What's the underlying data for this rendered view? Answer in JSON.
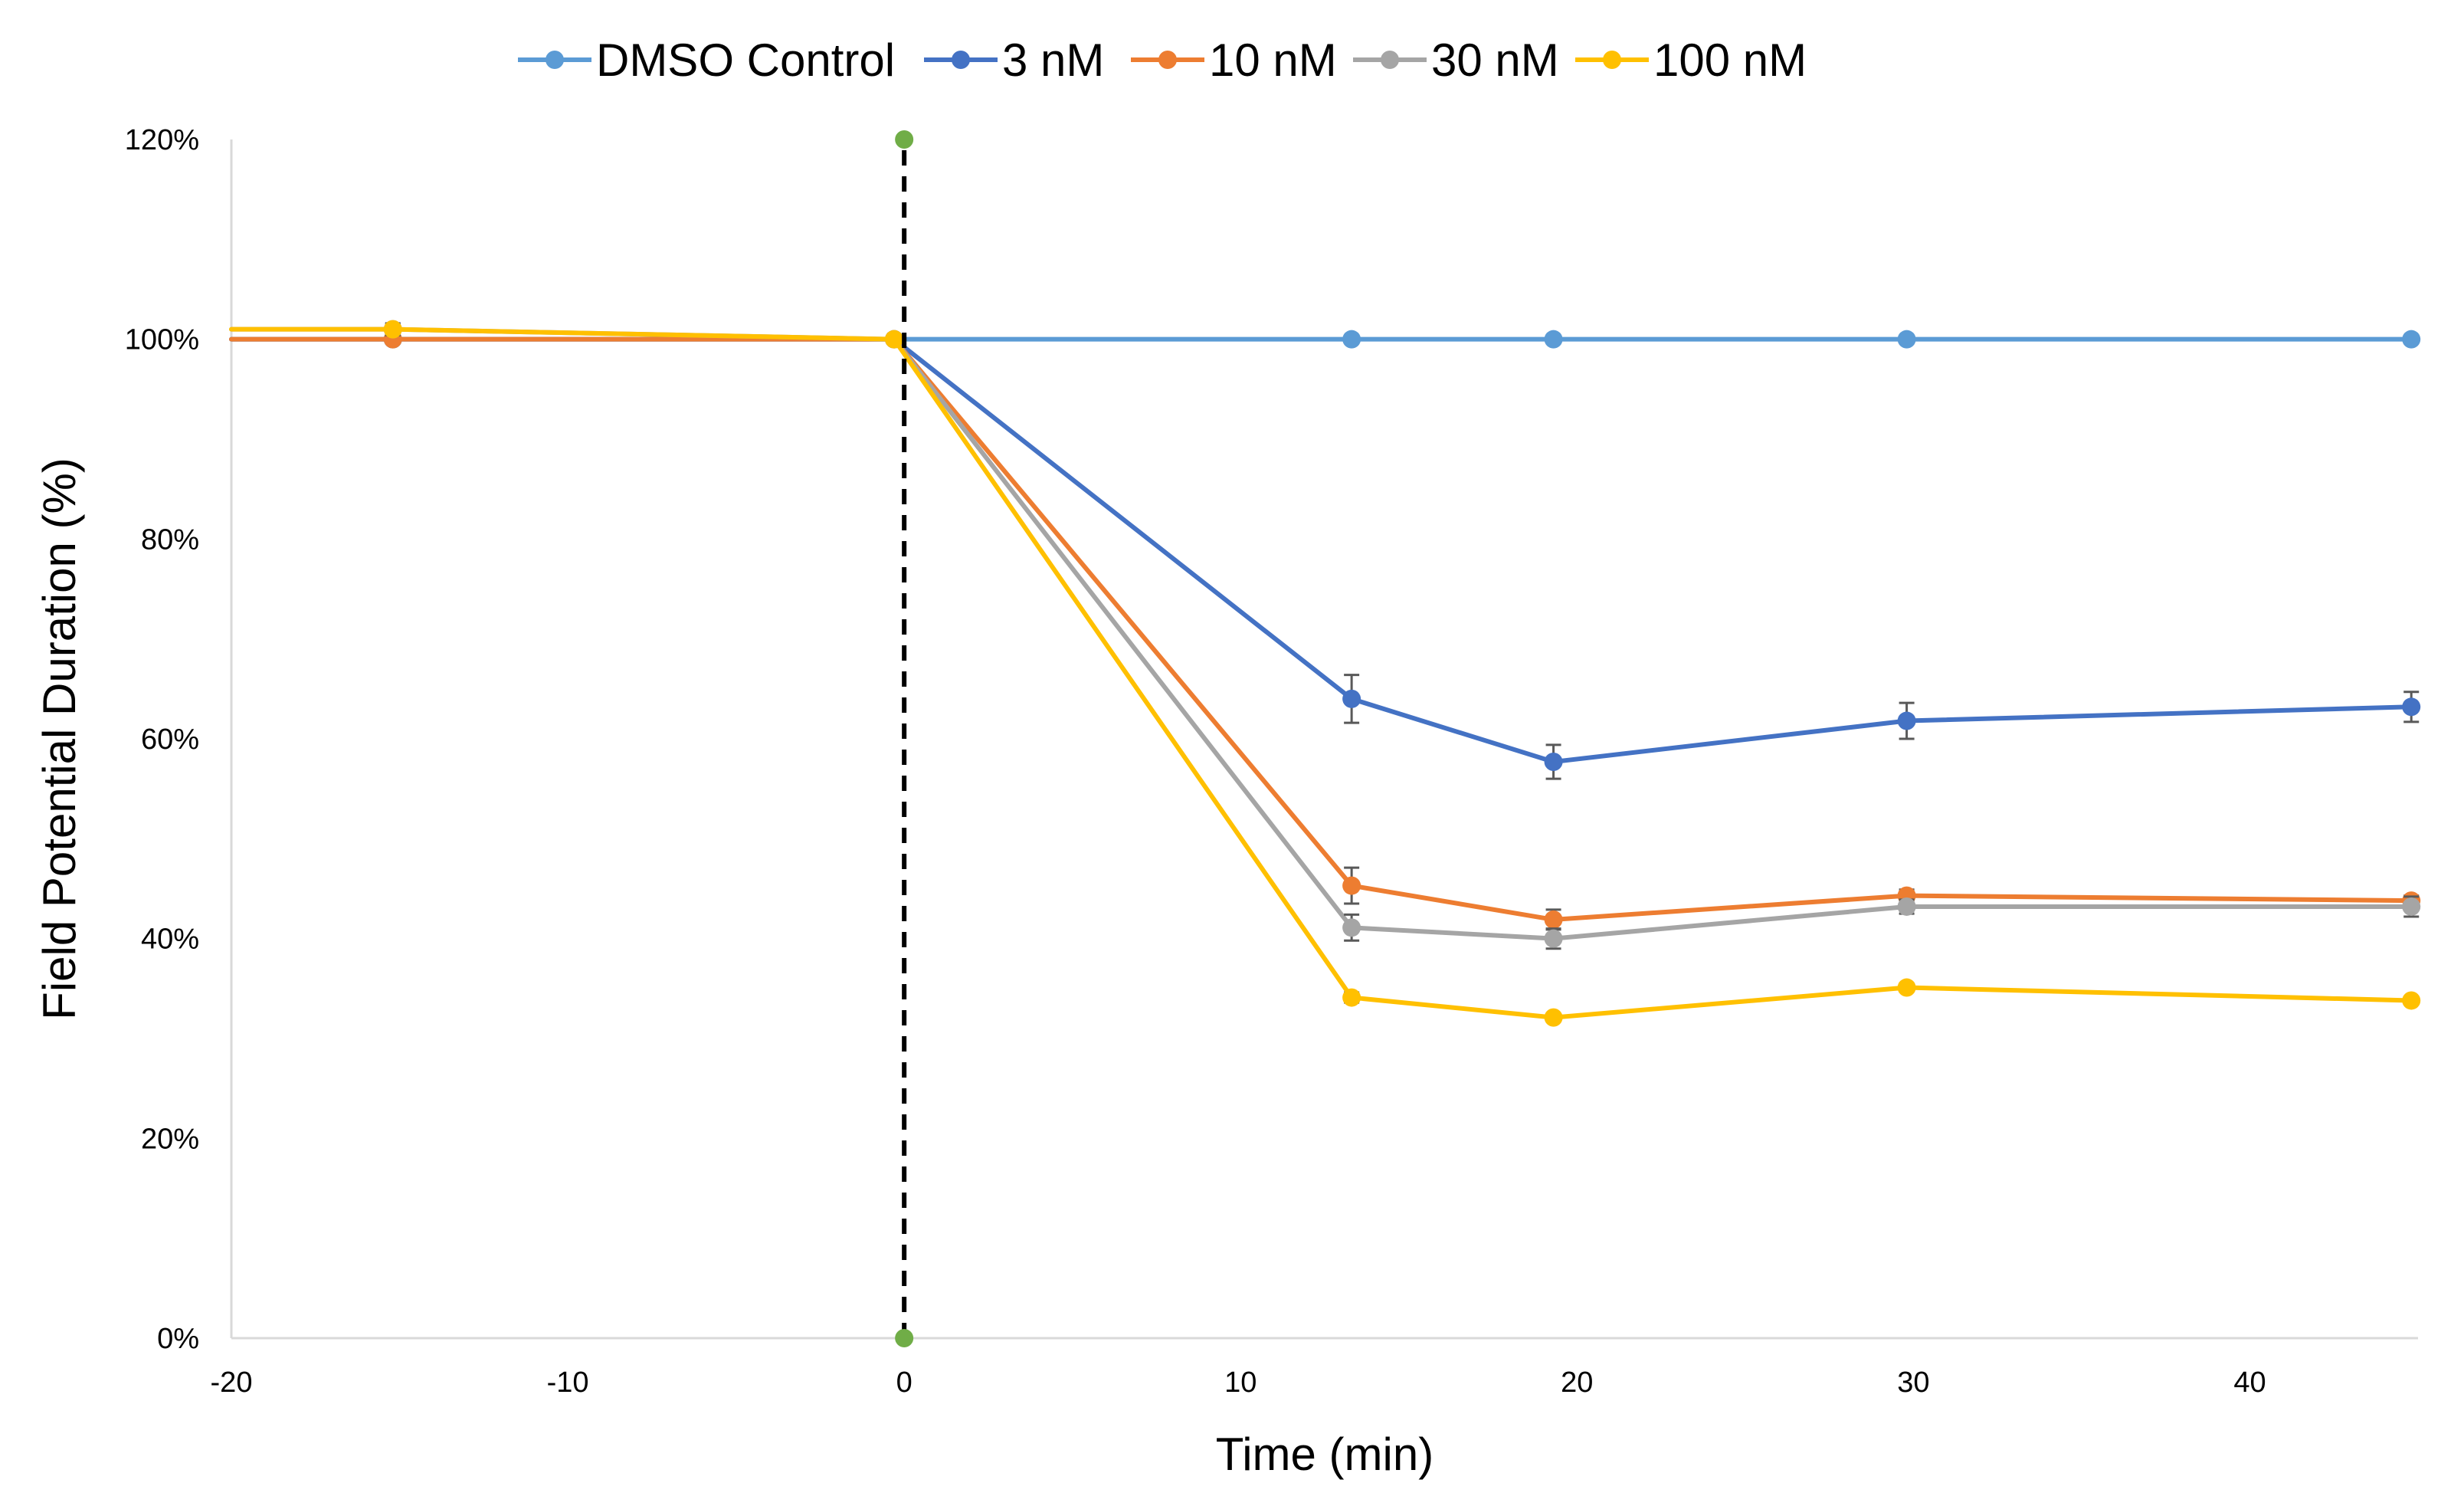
{
  "chart_data": {
    "type": "line",
    "title": "",
    "xlabel": "Time (min)",
    "ylabel": "Field Potential Duration (%)",
    "xlim": [
      -20,
      45
    ],
    "ylim": [
      0,
      120
    ],
    "x_ticks": [
      -20,
      -10,
      0,
      10,
      20,
      30,
      40
    ],
    "y_ticks": [
      0,
      20,
      40,
      60,
      80,
      100,
      120
    ],
    "y_tick_format": "percent",
    "grid": false,
    "legend_position": "top-center",
    "series": [
      {
        "name": "DMSO Control",
        "color": "#5B9BD5",
        "x": [
          -20,
          -15.2,
          -0.3,
          13.3,
          19.3,
          29.8,
          44.8
        ],
        "y": [
          100,
          100,
          100,
          100,
          100,
          100,
          100
        ],
        "err": [
          0,
          0,
          0,
          0,
          0,
          0,
          0
        ]
      },
      {
        "name": "3 nM",
        "color": "#4472C4",
        "x": [
          -20,
          -15.2,
          -0.3,
          13.3,
          19.3,
          29.8,
          44.8
        ],
        "y": [
          100,
          100,
          100,
          64,
          57.7,
          61.8,
          63.2
        ],
        "err": [
          0,
          0,
          0,
          2.4,
          1.7,
          1.8,
          1.5
        ]
      },
      {
        "name": "10 nM",
        "color": "#ED7D31",
        "x": [
          -20,
          -15.2,
          -0.3,
          13.3,
          19.3,
          29.8,
          44.8
        ],
        "y": [
          100,
          100,
          100,
          45.3,
          41.9,
          44.3,
          43.8
        ],
        "err": [
          0,
          0,
          0,
          1.8,
          1,
          0.6,
          0.5
        ]
      },
      {
        "name": "30 nM",
        "color": "#A5A5A5",
        "x": [
          -20,
          -15.2,
          -0.3,
          13.3,
          19.3,
          29.8,
          44.8
        ],
        "y": [
          101,
          101,
          100,
          41.1,
          40,
          43.2,
          43.2
        ],
        "err": [
          0,
          0.6,
          0,
          1.3,
          1,
          0.7,
          1
        ]
      },
      {
        "name": "100 nM",
        "color": "#FFC000",
        "x": [
          -20,
          -15.2,
          -0.3,
          13.3,
          19.3,
          29.8,
          44.8
        ],
        "y": [
          101,
          101,
          100,
          34.1,
          32.1,
          35.1,
          33.8
        ],
        "err": [
          0,
          0.5,
          0,
          0.5,
          0.3,
          0.4,
          0.3
        ]
      }
    ],
    "reference_line": {
      "x": 0,
      "y": [
        0,
        120
      ],
      "color": "#000000",
      "marker_color": "#70AD47",
      "style": "dashed"
    }
  }
}
